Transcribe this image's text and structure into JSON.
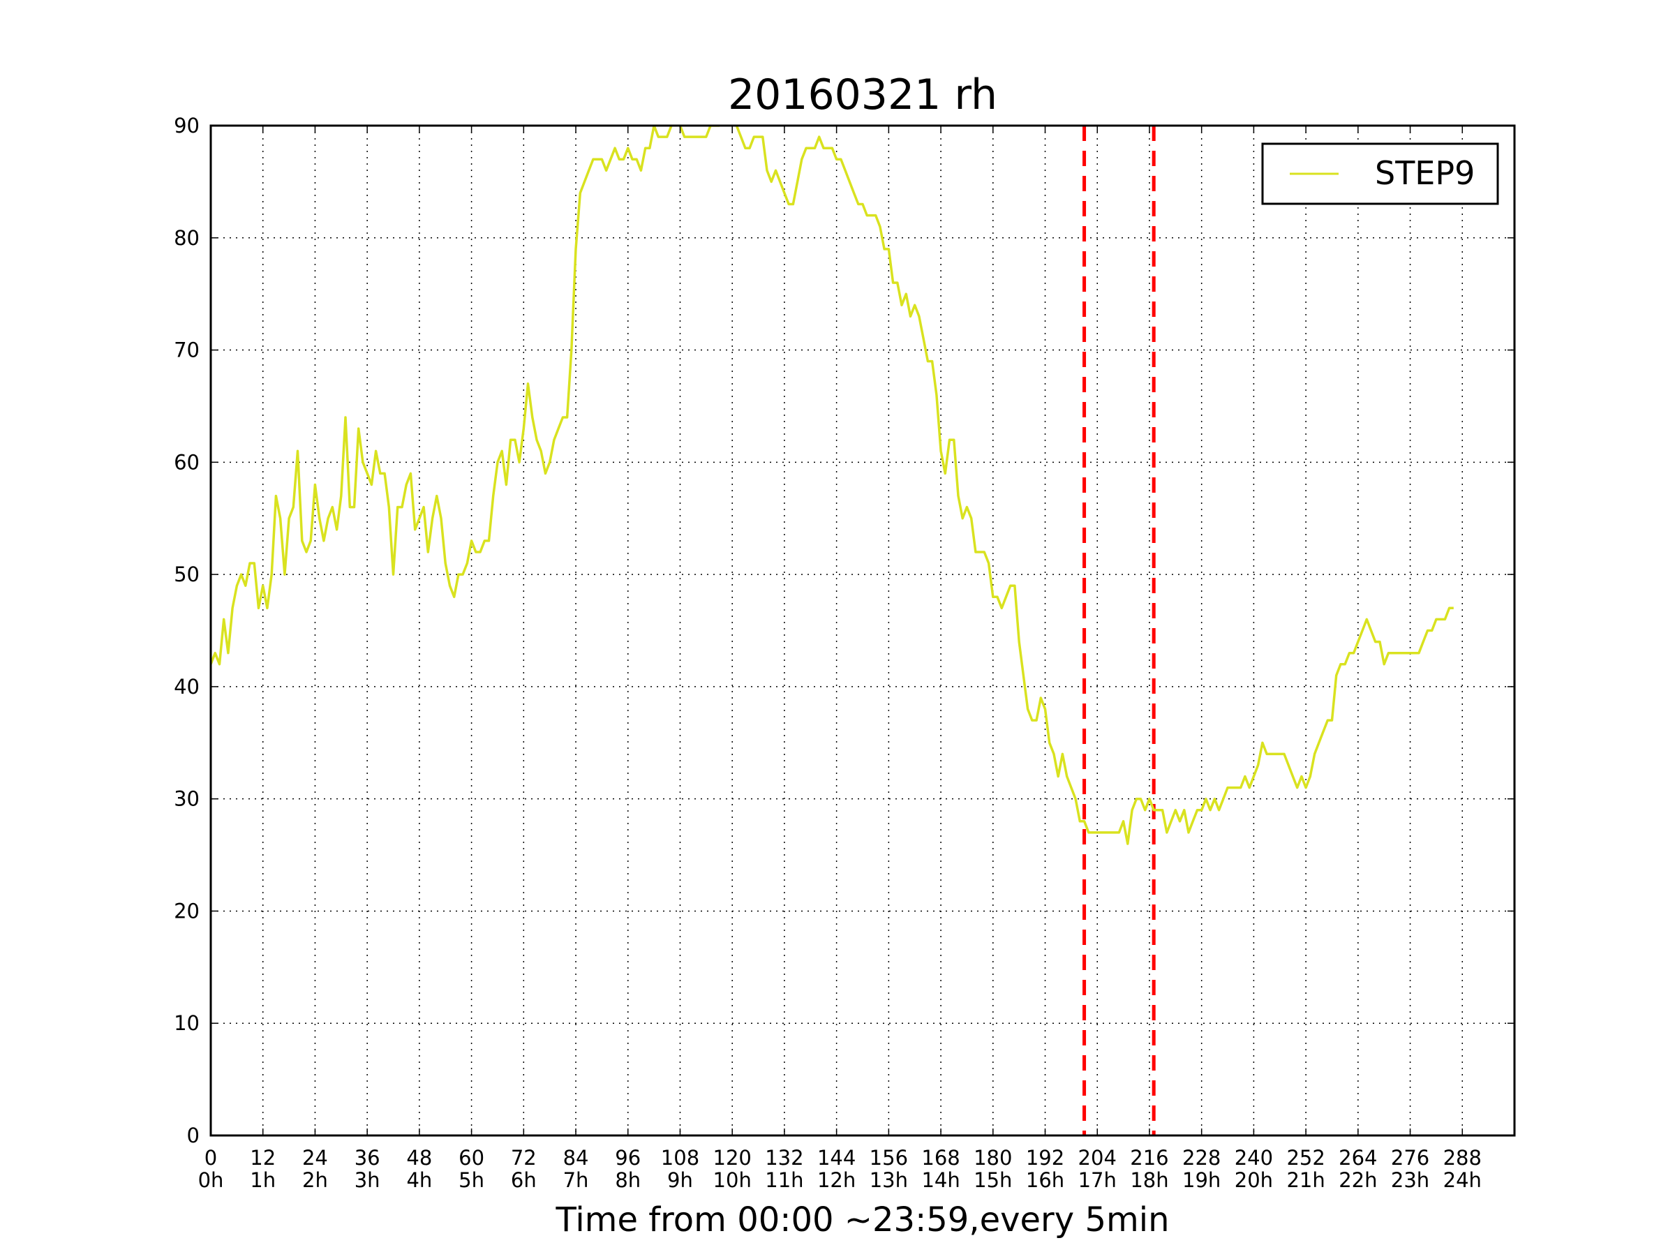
{
  "chart_data": {
    "type": "line",
    "title": "20160321 rh",
    "xlabel": "Time from 00:00 ~23:59,every 5min",
    "ylabel": "",
    "xlim": [
      0,
      300
    ],
    "ylim": [
      0,
      90
    ],
    "grid": true,
    "legend_position": "top-right",
    "xticks": [
      {
        "value": 0,
        "label": "0",
        "hour": "0h"
      },
      {
        "value": 12,
        "label": "12",
        "hour": "1h"
      },
      {
        "value": 24,
        "label": "24",
        "hour": "2h"
      },
      {
        "value": 36,
        "label": "36",
        "hour": "3h"
      },
      {
        "value": 48,
        "label": "48",
        "hour": "4h"
      },
      {
        "value": 60,
        "label": "60",
        "hour": "5h"
      },
      {
        "value": 72,
        "label": "72",
        "hour": "6h"
      },
      {
        "value": 84,
        "label": "84",
        "hour": "7h"
      },
      {
        "value": 96,
        "label": "96",
        "hour": "8h"
      },
      {
        "value": 108,
        "label": "108",
        "hour": "9h"
      },
      {
        "value": 120,
        "label": "120",
        "hour": "10h"
      },
      {
        "value": 132,
        "label": "132",
        "hour": "11h"
      },
      {
        "value": 144,
        "label": "144",
        "hour": "12h"
      },
      {
        "value": 156,
        "label": "156",
        "hour": "13h"
      },
      {
        "value": 168,
        "label": "168",
        "hour": "14h"
      },
      {
        "value": 180,
        "label": "180",
        "hour": "15h"
      },
      {
        "value": 192,
        "label": "192",
        "hour": "16h"
      },
      {
        "value": 204,
        "label": "204",
        "hour": "17h"
      },
      {
        "value": 216,
        "label": "216",
        "hour": "18h"
      },
      {
        "value": 228,
        "label": "228",
        "hour": "19h"
      },
      {
        "value": 240,
        "label": "240",
        "hour": "20h"
      },
      {
        "value": 252,
        "label": "252",
        "hour": "21h"
      },
      {
        "value": 264,
        "label": "264",
        "hour": "22h"
      },
      {
        "value": 276,
        "label": "276",
        "hour": "23h"
      },
      {
        "value": 288,
        "label": "288",
        "hour": "24h"
      }
    ],
    "yticks": [
      0,
      10,
      20,
      30,
      40,
      50,
      60,
      70,
      80,
      90
    ],
    "series": [
      {
        "name": "STEP9",
        "color": "#d9e21f",
        "points": [
          [
            0,
            42
          ],
          [
            1,
            43
          ],
          [
            2,
            42
          ],
          [
            3,
            46
          ],
          [
            4,
            43
          ],
          [
            5,
            47
          ],
          [
            6,
            49
          ],
          [
            7,
            50
          ],
          [
            8,
            49
          ],
          [
            9,
            51
          ],
          [
            10,
            51
          ],
          [
            11,
            47
          ],
          [
            12,
            49
          ],
          [
            13,
            47
          ],
          [
            14,
            50
          ],
          [
            15,
            57
          ],
          [
            16,
            55
          ],
          [
            17,
            50
          ],
          [
            18,
            55
          ],
          [
            19,
            56
          ],
          [
            20,
            61
          ],
          [
            21,
            53
          ],
          [
            22,
            52
          ],
          [
            23,
            53
          ],
          [
            24,
            58
          ],
          [
            25,
            55
          ],
          [
            26,
            53
          ],
          [
            27,
            55
          ],
          [
            28,
            56
          ],
          [
            29,
            54
          ],
          [
            30,
            57
          ],
          [
            31,
            64
          ],
          [
            32,
            56
          ],
          [
            33,
            56
          ],
          [
            34,
            63
          ],
          [
            35,
            60
          ],
          [
            36,
            59
          ],
          [
            37,
            58
          ],
          [
            38,
            61
          ],
          [
            39,
            59
          ],
          [
            40,
            59
          ],
          [
            41,
            56
          ],
          [
            42,
            50
          ],
          [
            43,
            56
          ],
          [
            44,
            56
          ],
          [
            45,
            58
          ],
          [
            46,
            59
          ],
          [
            47,
            54
          ],
          [
            48,
            55
          ],
          [
            49,
            56
          ],
          [
            50,
            52
          ],
          [
            51,
            55
          ],
          [
            52,
            57
          ],
          [
            53,
            55
          ],
          [
            54,
            51
          ],
          [
            55,
            49
          ],
          [
            56,
            48
          ],
          [
            57,
            50
          ],
          [
            58,
            50
          ],
          [
            59,
            51
          ],
          [
            60,
            53
          ],
          [
            61,
            52
          ],
          [
            62,
            52
          ],
          [
            63,
            53
          ],
          [
            64,
            53
          ],
          [
            65,
            57
          ],
          [
            66,
            60
          ],
          [
            67,
            61
          ],
          [
            68,
            58
          ],
          [
            69,
            62
          ],
          [
            70,
            62
          ],
          [
            71,
            60
          ],
          [
            72,
            63
          ],
          [
            73,
            67
          ],
          [
            74,
            64
          ],
          [
            75,
            62
          ],
          [
            76,
            61
          ],
          [
            77,
            59
          ],
          [
            78,
            60
          ],
          [
            79,
            62
          ],
          [
            80,
            63
          ],
          [
            81,
            64
          ],
          [
            82,
            64
          ],
          [
            83,
            70
          ],
          [
            84,
            79
          ],
          [
            85,
            84
          ],
          [
            86,
            85
          ],
          [
            87,
            86
          ],
          [
            88,
            87
          ],
          [
            89,
            87
          ],
          [
            90,
            87
          ],
          [
            91,
            86
          ],
          [
            92,
            87
          ],
          [
            93,
            88
          ],
          [
            94,
            87
          ],
          [
            95,
            87
          ],
          [
            96,
            88
          ],
          [
            97,
            87
          ],
          [
            98,
            87
          ],
          [
            99,
            86
          ],
          [
            100,
            88
          ],
          [
            101,
            88
          ],
          [
            102,
            90
          ],
          [
            103,
            89
          ],
          [
            104,
            89
          ],
          [
            105,
            89
          ],
          [
            106,
            90
          ],
          [
            107,
            91
          ],
          [
            108,
            90
          ],
          [
            109,
            89
          ],
          [
            110,
            89
          ],
          [
            111,
            89
          ],
          [
            112,
            89
          ],
          [
            113,
            89
          ],
          [
            114,
            89
          ],
          [
            115,
            90
          ],
          [
            116,
            90
          ],
          [
            117,
            90
          ],
          [
            118,
            91
          ],
          [
            119,
            91
          ],
          [
            120,
            91
          ],
          [
            121,
            90
          ],
          [
            122,
            89
          ],
          [
            123,
            88
          ],
          [
            124,
            88
          ],
          [
            125,
            89
          ],
          [
            126,
            89
          ],
          [
            127,
            89
          ],
          [
            128,
            86
          ],
          [
            129,
            85
          ],
          [
            130,
            86
          ],
          [
            131,
            85
          ],
          [
            132,
            84
          ],
          [
            133,
            83
          ],
          [
            134,
            83
          ],
          [
            135,
            85
          ],
          [
            136,
            87
          ],
          [
            137,
            88
          ],
          [
            138,
            88
          ],
          [
            139,
            88
          ],
          [
            140,
            89
          ],
          [
            141,
            88
          ],
          [
            142,
            88
          ],
          [
            143,
            88
          ],
          [
            144,
            87
          ],
          [
            145,
            87
          ],
          [
            146,
            86
          ],
          [
            147,
            85
          ],
          [
            148,
            84
          ],
          [
            149,
            83
          ],
          [
            150,
            83
          ],
          [
            151,
            82
          ],
          [
            152,
            82
          ],
          [
            153,
            82
          ],
          [
            154,
            81
          ],
          [
            155,
            79
          ],
          [
            156,
            79
          ],
          [
            157,
            76
          ],
          [
            158,
            76
          ],
          [
            159,
            74
          ],
          [
            160,
            75
          ],
          [
            161,
            73
          ],
          [
            162,
            74
          ],
          [
            163,
            73
          ],
          [
            164,
            71
          ],
          [
            165,
            69
          ],
          [
            166,
            69
          ],
          [
            167,
            66
          ],
          [
            168,
            61
          ],
          [
            169,
            59
          ],
          [
            170,
            62
          ],
          [
            171,
            62
          ],
          [
            172,
            57
          ],
          [
            173,
            55
          ],
          [
            174,
            56
          ],
          [
            175,
            55
          ],
          [
            176,
            52
          ],
          [
            177,
            52
          ],
          [
            178,
            52
          ],
          [
            179,
            51
          ],
          [
            180,
            48
          ],
          [
            181,
            48
          ],
          [
            182,
            47
          ],
          [
            183,
            48
          ],
          [
            184,
            49
          ],
          [
            185,
            49
          ],
          [
            186,
            44
          ],
          [
            187,
            41
          ],
          [
            188,
            38
          ],
          [
            189,
            37
          ],
          [
            190,
            37
          ],
          [
            191,
            39
          ],
          [
            192,
            38
          ],
          [
            193,
            35
          ],
          [
            194,
            34
          ],
          [
            195,
            32
          ],
          [
            196,
            34
          ],
          [
            197,
            32
          ],
          [
            198,
            31
          ],
          [
            199,
            30
          ],
          [
            200,
            28
          ],
          [
            201,
            28
          ],
          [
            202,
            27
          ],
          [
            203,
            27
          ],
          [
            204,
            27
          ],
          [
            205,
            27
          ],
          [
            206,
            27
          ],
          [
            207,
            27
          ],
          [
            208,
            27
          ],
          [
            209,
            27
          ],
          [
            210,
            28
          ],
          [
            211,
            26
          ],
          [
            212,
            29
          ],
          [
            213,
            30
          ],
          [
            214,
            30
          ],
          [
            215,
            29
          ],
          [
            216,
            30
          ],
          [
            217,
            29
          ],
          [
            218,
            29
          ],
          [
            219,
            29
          ],
          [
            220,
            27
          ],
          [
            221,
            28
          ],
          [
            222,
            29
          ],
          [
            223,
            28
          ],
          [
            224,
            29
          ],
          [
            225,
            27
          ],
          [
            226,
            28
          ],
          [
            227,
            29
          ],
          [
            228,
            29
          ],
          [
            229,
            30
          ],
          [
            230,
            29
          ],
          [
            231,
            30
          ],
          [
            232,
            29
          ],
          [
            233,
            30
          ],
          [
            234,
            31
          ],
          [
            235,
            31
          ],
          [
            236,
            31
          ],
          [
            237,
            31
          ],
          [
            238,
            32
          ],
          [
            239,
            31
          ],
          [
            240,
            32
          ],
          [
            241,
            33
          ],
          [
            242,
            35
          ],
          [
            243,
            34
          ],
          [
            244,
            34
          ],
          [
            245,
            34
          ],
          [
            246,
            34
          ],
          [
            247,
            34
          ],
          [
            248,
            33
          ],
          [
            249,
            32
          ],
          [
            250,
            31
          ],
          [
            251,
            32
          ],
          [
            252,
            31
          ],
          [
            253,
            32
          ],
          [
            254,
            34
          ],
          [
            255,
            35
          ],
          [
            256,
            36
          ],
          [
            257,
            37
          ],
          [
            258,
            37
          ],
          [
            259,
            41
          ],
          [
            260,
            42
          ],
          [
            261,
            42
          ],
          [
            262,
            43
          ],
          [
            263,
            43
          ],
          [
            264,
            44
          ],
          [
            265,
            45
          ],
          [
            266,
            46
          ],
          [
            267,
            45
          ],
          [
            268,
            44
          ],
          [
            269,
            44
          ],
          [
            270,
            42
          ],
          [
            271,
            43
          ],
          [
            272,
            43
          ],
          [
            273,
            43
          ],
          [
            274,
            43
          ],
          [
            275,
            43
          ],
          [
            276,
            43
          ],
          [
            277,
            43
          ],
          [
            278,
            43
          ],
          [
            279,
            44
          ],
          [
            280,
            45
          ],
          [
            281,
            45
          ],
          [
            282,
            46
          ],
          [
            283,
            46
          ],
          [
            284,
            46
          ],
          [
            285,
            47
          ],
          [
            286,
            47
          ]
        ]
      }
    ],
    "reference_lines": [
      {
        "x": 201,
        "color": "#ff0000",
        "style": "dashed"
      },
      {
        "x": 217,
        "color": "#ff0000",
        "style": "dashed"
      }
    ]
  }
}
